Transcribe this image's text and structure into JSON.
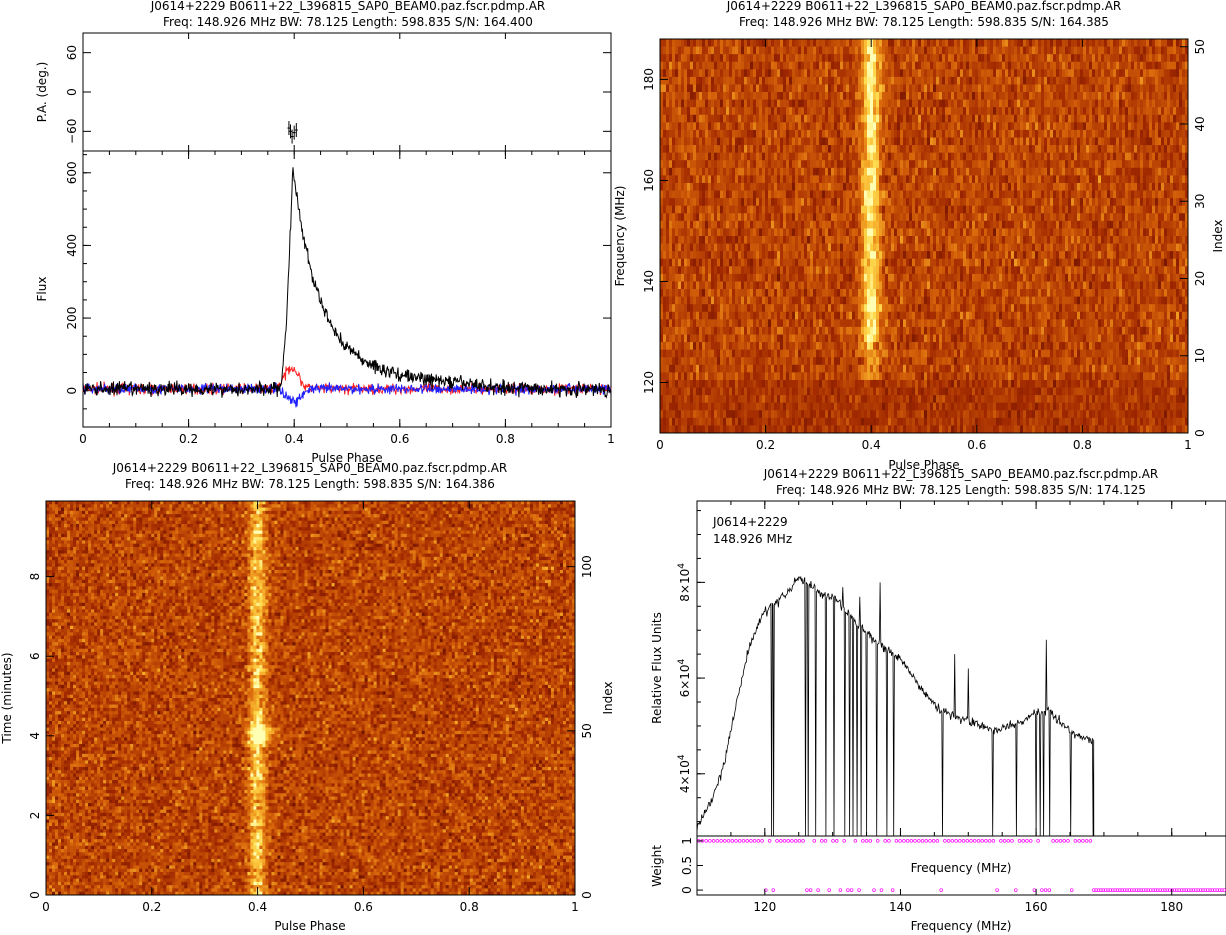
{
  "panels": {
    "profile": {
      "title": "J0614+2229  B0611+22_L396815_SAP0_BEAM0.paz.fscr.pdmp.AR",
      "subtitle": "Freq: 148.926 MHz BW: 78.125 Length: 598.835 S/N: 164.400",
      "xlabel": "Pulse Phase",
      "pa_label": "P.A. (deg.)",
      "flux_label": "Flux"
    },
    "freq_phase": {
      "title": "J0614+2229  B0611+22_L396815_SAP0_BEAM0.paz.fscr.pdmp.AR",
      "subtitle": "Freq: 148.926 MHz BW: 78.125 Length: 598.835 S/N: 164.385",
      "xlabel": "Pulse Phase",
      "ylabel": "Frequency (MHz)",
      "y2label": "Index"
    },
    "time_phase": {
      "title": "J0614+2229  B0611+22_L396815_SAP0_BEAM0.paz.fscr.pdmp.AR",
      "subtitle": "Freq: 148.926 MHz BW: 78.125 Length: 598.835 S/N: 164.386",
      "xlabel": "Pulse Phase",
      "ylabel": "Time (minutes)",
      "y2label": "Index"
    },
    "bandpass": {
      "title": "J0614+2229  B0611+22_L396815_SAP0_BEAM0.paz.fscr.pdmp.AR",
      "subtitle": "Freq: 148.926 MHz BW: 78.125 Length: 598.835 S/N: 174.125",
      "ylabel": "Relative Flux Units",
      "mid_xlabel": "Frequency (MHz)",
      "xlabel": "Frequency (MHz)",
      "weight_label": "Weight",
      "annot_source": "J0614+2229",
      "annot_freq": "148.926  MHz"
    }
  },
  "colors": {
    "total": "#000000",
    "linear": "#ff2020",
    "circular": "#2020ff",
    "weights": "#ff00ff"
  },
  "chart_data": [
    {
      "type": "line",
      "panel": "profile",
      "xlim": [
        0,
        1
      ],
      "ylim": [
        -100,
        660
      ],
      "xticks": [
        "0",
        "0.2",
        "0.4",
        "0.6",
        "0.8",
        "1"
      ],
      "yticks": [
        "0",
        "200",
        "400",
        "600"
      ],
      "pa_ylim": [
        -90,
        90
      ],
      "pa_yticks": [
        "−60",
        "0",
        "60"
      ],
      "series": [
        {
          "key": "total",
          "peak_phase": 0.397,
          "peak_value": 610,
          "baseline": 5,
          "noise": 14
        },
        {
          "key": "linear",
          "peak_phase": 0.395,
          "peak_value": 60,
          "baseline": 5,
          "noise": 10
        },
        {
          "key": "circular",
          "peak_phase": 0.4,
          "peak_value": -35,
          "baseline": 5,
          "noise": 10
        }
      ],
      "pa_points": [
        [
          0.39,
          -55
        ],
        [
          0.393,
          -60
        ],
        [
          0.396,
          -68
        ],
        [
          0.4,
          -62
        ],
        [
          0.404,
          -58
        ]
      ]
    },
    {
      "type": "heatmap",
      "panel": "freq_phase",
      "xlim": [
        0,
        1
      ],
      "ylim": [
        110,
        188
      ],
      "xticks": [
        "0",
        "0.2",
        "0.4",
        "0.6",
        "0.8",
        "1"
      ],
      "yticks": [
        "120",
        "140",
        "160",
        "180"
      ],
      "y2lim": [
        0,
        51
      ],
      "y2ticks": [
        "0",
        "10",
        "20",
        "30",
        "40",
        "50"
      ],
      "pulse_phase": 0.4,
      "rows": 52
    },
    {
      "type": "heatmap",
      "panel": "time_phase",
      "xlim": [
        0,
        1
      ],
      "ylim": [
        0,
        9.9
      ],
      "xticks": [
        "0",
        "0.2",
        "0.4",
        "0.6",
        "0.8",
        "1"
      ],
      "yticks": [
        "0",
        "2",
        "4",
        "6",
        "8"
      ],
      "y2lim": [
        0,
        120
      ],
      "y2ticks": [
        "0",
        "50",
        "100"
      ],
      "pulse_phase": 0.4,
      "bright_time": 4.0,
      "rows": 120
    },
    {
      "type": "line",
      "panel": "bandpass",
      "xlim": [
        110,
        188
      ],
      "ylim": [
        27000,
        97000
      ],
      "xticks": [
        "120",
        "140",
        "160",
        "180"
      ],
      "yticks": [
        40000,
        60000,
        80000
      ],
      "weight_ylim": [
        -0.1,
        1.1
      ],
      "weight_yticks": [
        "0",
        "0.5",
        "1"
      ],
      "envelope": [
        [
          110,
          29000
        ],
        [
          112,
          34000
        ],
        [
          114,
          42000
        ],
        [
          116,
          56000
        ],
        [
          118,
          68000
        ],
        [
          120,
          74000
        ],
        [
          122,
          76000
        ],
        [
          124,
          79000
        ],
        [
          125,
          81000
        ],
        [
          126,
          80000
        ],
        [
          128,
          78000
        ],
        [
          130,
          77000
        ],
        [
          132,
          74000
        ],
        [
          134,
          71000
        ],
        [
          136,
          68000
        ],
        [
          138,
          66000
        ],
        [
          140,
          64000
        ],
        [
          142,
          60000
        ],
        [
          144,
          56000
        ],
        [
          146,
          53000
        ],
        [
          148,
          52000
        ],
        [
          150,
          51000
        ],
        [
          152,
          50000
        ],
        [
          154,
          49000
        ],
        [
          156,
          50000
        ],
        [
          158,
          51000
        ],
        [
          160,
          53000
        ],
        [
          162,
          53000
        ],
        [
          164,
          50000
        ],
        [
          166,
          48000
        ],
        [
          168,
          47000
        ]
      ],
      "dropouts": [
        121,
        121.3,
        126,
        126.4,
        127.5,
        129,
        130.2,
        131.8,
        132.5,
        133,
        133.6,
        134.2,
        135,
        136.5,
        138,
        139,
        146.2,
        153.6,
        157.1,
        160,
        160.6,
        161.1,
        162,
        165.1,
        168.4
      ],
      "spikes": [
        [
          131.5,
          79000
        ],
        [
          134,
          77000
        ],
        [
          137,
          80000
        ],
        [
          148,
          65000
        ],
        [
          150,
          62000
        ],
        [
          161.5,
          68000
        ]
      ],
      "zero_weight_freqs": [
        120,
        121,
        126,
        127,
        128,
        129.5,
        131,
        132,
        133,
        134,
        136,
        137,
        139,
        146,
        154,
        157,
        160,
        160.8,
        161.5,
        162,
        165
      ],
      "flagged_range": [
        168.5,
        188
      ]
    }
  ]
}
